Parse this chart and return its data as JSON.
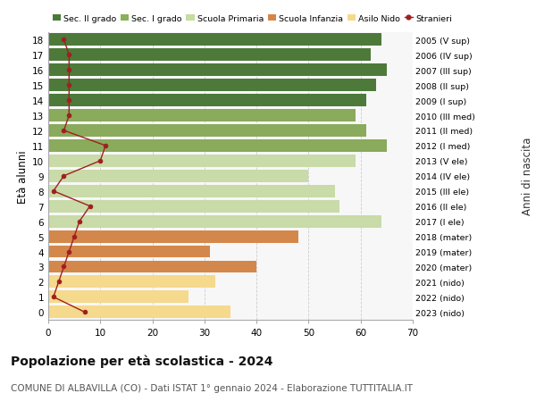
{
  "ages": [
    0,
    1,
    2,
    3,
    4,
    5,
    6,
    7,
    8,
    9,
    10,
    11,
    12,
    13,
    14,
    15,
    16,
    17,
    18
  ],
  "bar_values": [
    35,
    27,
    32,
    40,
    31,
    48,
    64,
    56,
    55,
    50,
    59,
    65,
    61,
    59,
    61,
    63,
    65,
    62,
    64
  ],
  "bar_colors": [
    "#f5d98c",
    "#f5d98c",
    "#f5d98c",
    "#d4874a",
    "#d4874a",
    "#d4874a",
    "#c8dba8",
    "#c8dba8",
    "#c8dba8",
    "#c8dba8",
    "#c8dba8",
    "#8aaa5c",
    "#8aaa5c",
    "#8aaa5c",
    "#4d7a3a",
    "#4d7a3a",
    "#4d7a3a",
    "#4d7a3a",
    "#4d7a3a"
  ],
  "stranieri_values": [
    7,
    1,
    2,
    3,
    4,
    5,
    6,
    8,
    1,
    3,
    10,
    11,
    3,
    4,
    4,
    4,
    4,
    4,
    3
  ],
  "right_labels": [
    "2023 (nido)",
    "2022 (nido)",
    "2021 (nido)",
    "2020 (mater)",
    "2019 (mater)",
    "2018 (mater)",
    "2017 (I ele)",
    "2016 (II ele)",
    "2015 (III ele)",
    "2014 (IV ele)",
    "2013 (V ele)",
    "2012 (I med)",
    "2011 (II med)",
    "2010 (III med)",
    "2009 (I sup)",
    "2008 (II sup)",
    "2007 (III sup)",
    "2006 (IV sup)",
    "2005 (V sup)"
  ],
  "ylabel_left": "Età alunni",
  "ylabel_right": "Anni di nascita",
  "title": "Popolazione per età scolastica - 2024",
  "subtitle": "COMUNE DI ALBAVILLA (CO) - Dati ISTAT 1° gennaio 2024 - Elaborazione TUTTITALIA.IT",
  "xlim": [
    0,
    70
  ],
  "xticks": [
    0,
    10,
    20,
    30,
    40,
    50,
    60,
    70
  ],
  "color_sec2": "#4a7a38",
  "color_sec1": "#8ab05a",
  "color_primaria": "#c5dda0",
  "color_infanzia": "#d4864a",
  "color_nido": "#f5d98c",
  "color_stranieri": "#a02020",
  "legend_labels": [
    "Sec. II grado",
    "Sec. I grado",
    "Scuola Primaria",
    "Scuola Infanzia",
    "Asilo Nido",
    "Stranieri"
  ],
  "bg_color": "#f7f7f7",
  "title_fontsize": 10,
  "subtitle_fontsize": 7.5
}
